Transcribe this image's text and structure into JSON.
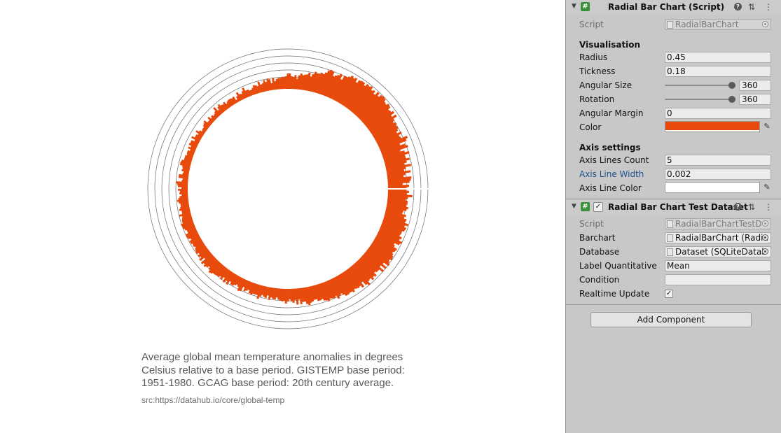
{
  "caption": {
    "lines": [
      "Average global mean temperature anomalies in degrees",
      "Celsius relative to a base period. GISTEMP base period:",
      "1951-1980. GCAG base period: 20th century average."
    ],
    "source": "src:https://datahub.io/core/global-temp"
  },
  "chart_data": {
    "type": "bar",
    "layout": "radial",
    "bar_count": 360,
    "bar_color": "#e84a0c",
    "axis_line_count": 5,
    "axis_line_color": "#ffffff",
    "values": [
      26,
      30,
      21,
      31,
      33,
      34,
      23,
      26,
      34,
      25,
      28,
      36,
      27,
      31,
      36,
      31,
      31,
      38,
      32,
      26,
      39,
      36,
      29,
      40,
      43,
      34,
      33,
      38,
      32,
      35,
      37,
      36,
      38,
      35,
      38,
      44,
      38,
      44,
      41,
      40,
      44,
      45,
      42,
      43,
      46,
      47,
      46,
      42,
      46,
      40,
      44,
      42,
      46,
      44,
      45,
      41,
      44,
      44,
      43,
      38,
      43,
      41,
      43,
      40,
      38,
      38,
      31,
      38,
      35,
      33,
      31,
      37,
      38,
      36,
      32,
      29,
      30,
      28,
      27,
      29,
      25,
      21,
      26,
      23,
      22,
      21,
      23,
      20,
      15,
      20,
      17,
      18,
      22,
      22,
      18,
      17,
      17,
      16,
      16,
      15,
      12,
      17,
      10,
      16,
      17,
      13,
      16,
      12,
      11,
      16,
      10,
      12,
      13,
      10,
      8,
      8,
      10,
      10,
      15,
      11,
      8,
      9,
      13,
      8,
      4,
      10,
      9,
      10,
      10,
      9,
      7,
      11,
      9,
      10,
      13,
      11,
      7,
      14,
      9,
      7,
      6,
      8,
      6,
      10,
      6,
      6,
      11,
      9,
      8,
      6,
      6,
      5,
      8,
      12,
      7,
      9,
      9,
      13,
      7,
      11,
      11,
      12,
      8,
      11,
      7,
      10,
      10,
      9,
      11,
      11,
      11,
      14,
      15,
      15,
      11,
      10,
      11,
      8,
      9,
      14,
      14,
      8,
      9,
      17,
      15,
      14,
      9,
      14,
      11,
      12,
      9,
      12,
      14,
      16,
      14,
      12,
      12,
      13,
      15,
      12,
      12,
      17,
      13,
      14,
      15,
      15,
      18,
      17,
      17,
      15,
      13,
      13,
      17,
      17,
      16,
      13,
      16,
      16,
      14,
      15,
      13,
      15,
      16,
      17,
      14,
      17,
      15,
      19,
      12,
      20,
      17,
      20,
      18,
      15,
      18,
      21,
      20,
      18,
      18,
      17,
      17,
      15,
      18,
      13,
      19,
      15,
      19,
      13,
      16,
      16,
      14,
      12,
      14,
      19,
      18,
      11,
      16,
      14,
      12,
      16,
      17,
      15,
      15,
      15,
      20,
      16,
      13,
      15,
      16,
      12,
      18,
      14,
      16,
      16,
      13,
      16,
      17,
      18,
      17,
      21,
      18,
      15,
      18,
      20,
      16,
      23,
      16,
      23,
      20,
      20,
      24,
      26,
      23,
      22,
      20,
      20,
      23,
      23,
      22,
      25,
      26,
      28,
      25,
      26,
      27,
      25,
      30,
      27,
      25,
      28,
      31,
      31,
      30,
      30,
      32,
      29,
      30,
      31,
      30,
      34,
      27,
      34,
      37,
      32,
      31,
      35,
      32,
      34,
      29,
      31,
      31,
      37,
      29,
      37,
      30,
      38,
      36,
      34,
      37,
      36,
      34,
      32,
      34,
      35,
      30,
      28,
      35,
      37,
      32,
      34,
      30,
      31,
      31,
      34,
      35,
      32,
      36,
      31,
      32,
      28,
      30,
      24,
      25,
      29,
      31,
      28,
      29,
      29,
      26,
      29,
      35,
      27,
      30,
      26
    ]
  },
  "inspector": {
    "radial_component": {
      "title": "Radial Bar Chart (Script)",
      "script_label": "Script",
      "script_value": "RadialBarChart",
      "vis_section": "Visualisation",
      "radius_label": "Radius",
      "radius_value": "0.45",
      "thickness_label": "Tickness",
      "thickness_value": "0.18",
      "angular_size_label": "Angular Size",
      "angular_size_value": "360",
      "angular_size_level": 1.0,
      "rotation_label": "Rotation",
      "rotation_value": "360",
      "rotation_level": 1.0,
      "angular_margin_label": "Angular Margin",
      "angular_margin_value": "0",
      "color_label": "Color",
      "color_value": "#e84a0c",
      "axis_section": "Axis settings",
      "axis_count_label": "Axis Lines Count",
      "axis_count_value": "5",
      "axis_width_label": "Axis Line Width",
      "axis_width_value": "0.002",
      "axis_color_label": "Axis Line Color",
      "axis_color_value": "#ffffff"
    },
    "dataset_component": {
      "title": "Radial Bar Chart Test Dataset",
      "enabled": true,
      "script_label": "Script",
      "script_value": "RadialBarChartTestD",
      "barchart_label": "Barchart",
      "barchart_value": "RadialBarChart (Radia",
      "database_label": "Database",
      "database_value": "Dataset (SQLiteDatab",
      "label_quant_label": "Label Quantitative",
      "label_quant_value": "Mean",
      "condition_label": "Condition",
      "condition_value": "",
      "realtime_label": "Realtime Update",
      "realtime_value": true
    },
    "add_component_label": "Add Component"
  }
}
